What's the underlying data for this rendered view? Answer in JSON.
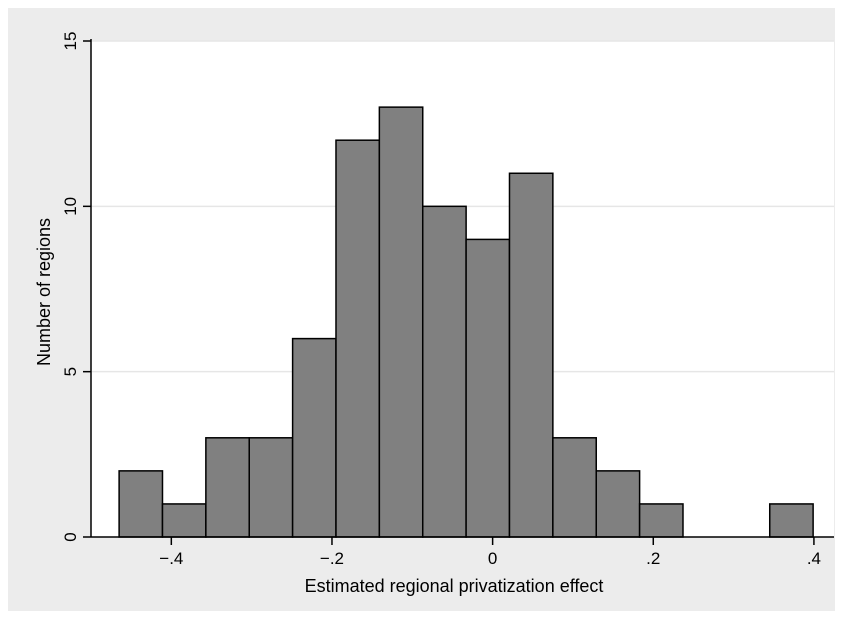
{
  "chart_data": {
    "type": "histogram",
    "xlabel": "Estimated regional privatization effect",
    "ylabel": "Number of regions",
    "xlim": [
      -0.5,
      0.425
    ],
    "ylim": [
      0,
      15
    ],
    "x_ticks": [
      {
        "value": -0.4,
        "label": "-.4"
      },
      {
        "value": -0.2,
        "label": "-.2"
      },
      {
        "value": 0,
        "label": "0"
      },
      {
        "value": 0.2,
        "label": ".2"
      },
      {
        "value": 0.4,
        "label": ".4"
      }
    ],
    "y_ticks": [
      {
        "value": 0,
        "label": "0"
      },
      {
        "value": 5,
        "label": "5"
      },
      {
        "value": 10,
        "label": "10"
      },
      {
        "value": 15,
        "label": "15"
      }
    ],
    "grid": "horizontal",
    "colors": {
      "bar_fill": "#808080",
      "bar_stroke": "#000000",
      "plot_bg": "#ffffff",
      "outer_bg": "#ececec",
      "grid": "#e6e6e6"
    },
    "bins": [
      {
        "x0": -0.465,
        "x1": -0.411,
        "count": 2
      },
      {
        "x0": -0.411,
        "x1": -0.357,
        "count": 1
      },
      {
        "x0": -0.357,
        "x1": -0.303,
        "count": 3
      },
      {
        "x0": -0.303,
        "x1": -0.249,
        "count": 3
      },
      {
        "x0": -0.249,
        "x1": -0.195,
        "count": 6
      },
      {
        "x0": -0.195,
        "x1": -0.141,
        "count": 12
      },
      {
        "x0": -0.141,
        "x1": -0.087,
        "count": 13
      },
      {
        "x0": -0.087,
        "x1": -0.033,
        "count": 10
      },
      {
        "x0": -0.033,
        "x1": 0.021,
        "count": 9
      },
      {
        "x0": 0.021,
        "x1": 0.075,
        "count": 11
      },
      {
        "x0": 0.075,
        "x1": 0.129,
        "count": 3
      },
      {
        "x0": 0.129,
        "x1": 0.183,
        "count": 2
      },
      {
        "x0": 0.183,
        "x1": 0.237,
        "count": 1
      },
      {
        "x0": 0.237,
        "x1": 0.291,
        "count": 0
      },
      {
        "x0": 0.291,
        "x1": 0.345,
        "count": 0
      },
      {
        "x0": 0.345,
        "x1": 0.399,
        "count": 1
      }
    ]
  }
}
